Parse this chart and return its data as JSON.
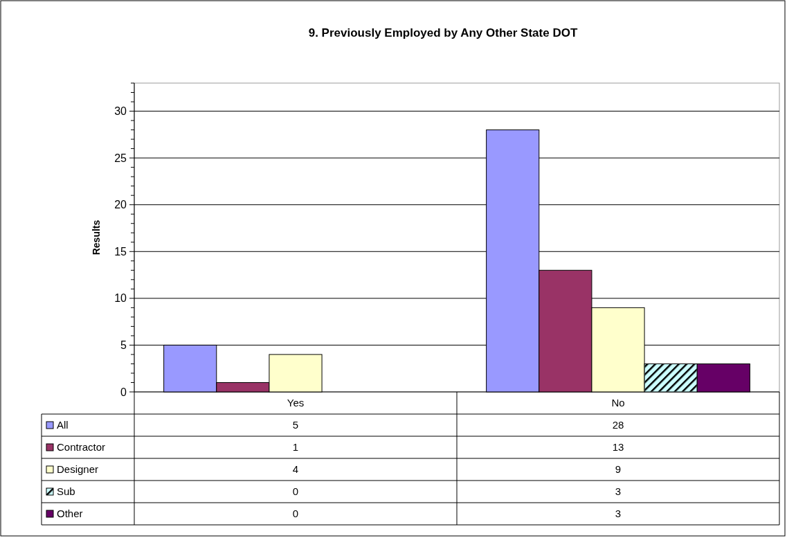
{
  "chart_data": {
    "type": "bar",
    "title": "9. Previously Employed by Any Other State DOT",
    "ylabel": "Results",
    "categories": [
      "Yes",
      "No"
    ],
    "series": [
      {
        "name": "All",
        "color": "#9999ff",
        "values": [
          5,
          28
        ]
      },
      {
        "name": "Contractor",
        "color": "#993366",
        "values": [
          1,
          13
        ]
      },
      {
        "name": "Designer",
        "color": "#ffffcc",
        "values": [
          4,
          9
        ]
      },
      {
        "name": "Sub",
        "color": "#ccffff",
        "values": [
          0,
          3
        ]
      },
      {
        "name": "Other",
        "color": "#660066",
        "values": [
          0,
          3
        ]
      }
    ],
    "ylim": [
      0,
      33
    ],
    "yticks": [
      0,
      {
        "value": 1,
        "label": null
      },
      {
        "value": 2,
        "label": null
      },
      {
        "value": 3,
        "label": null
      },
      {
        "value": 4,
        "label": null
      },
      5,
      {
        "value": 6,
        "label": null
      },
      {
        "value": 7,
        "label": null
      },
      {
        "value": 8,
        "label": null
      },
      {
        "value": 9,
        "label": null
      },
      10,
      {
        "value": 11,
        "label": null
      },
      {
        "value": 12,
        "label": null
      },
      {
        "value": 13,
        "label": null
      },
      {
        "value": 14,
        "label": null
      },
      15,
      {
        "value": 16,
        "label": null
      },
      {
        "value": 17,
        "label": null
      },
      {
        "value": 18,
        "label": null
      },
      {
        "value": 19,
        "label": null
      },
      20,
      {
        "value": 21,
        "label": null
      },
      {
        "value": 22,
        "label": null
      },
      {
        "value": 23,
        "label": null
      },
      {
        "value": 24,
        "label": null
      },
      25,
      {
        "value": 26,
        "label": null
      },
      {
        "value": 27,
        "label": null
      },
      {
        "value": 28,
        "label": null
      },
      {
        "value": 29,
        "label": null
      },
      30,
      {
        "value": 31,
        "label": null
      },
      {
        "value": 32,
        "label": null
      },
      {
        "value": 33,
        "label": null
      }
    ],
    "grid": "y",
    "legend": "bottom",
    "data_labels": true
  }
}
